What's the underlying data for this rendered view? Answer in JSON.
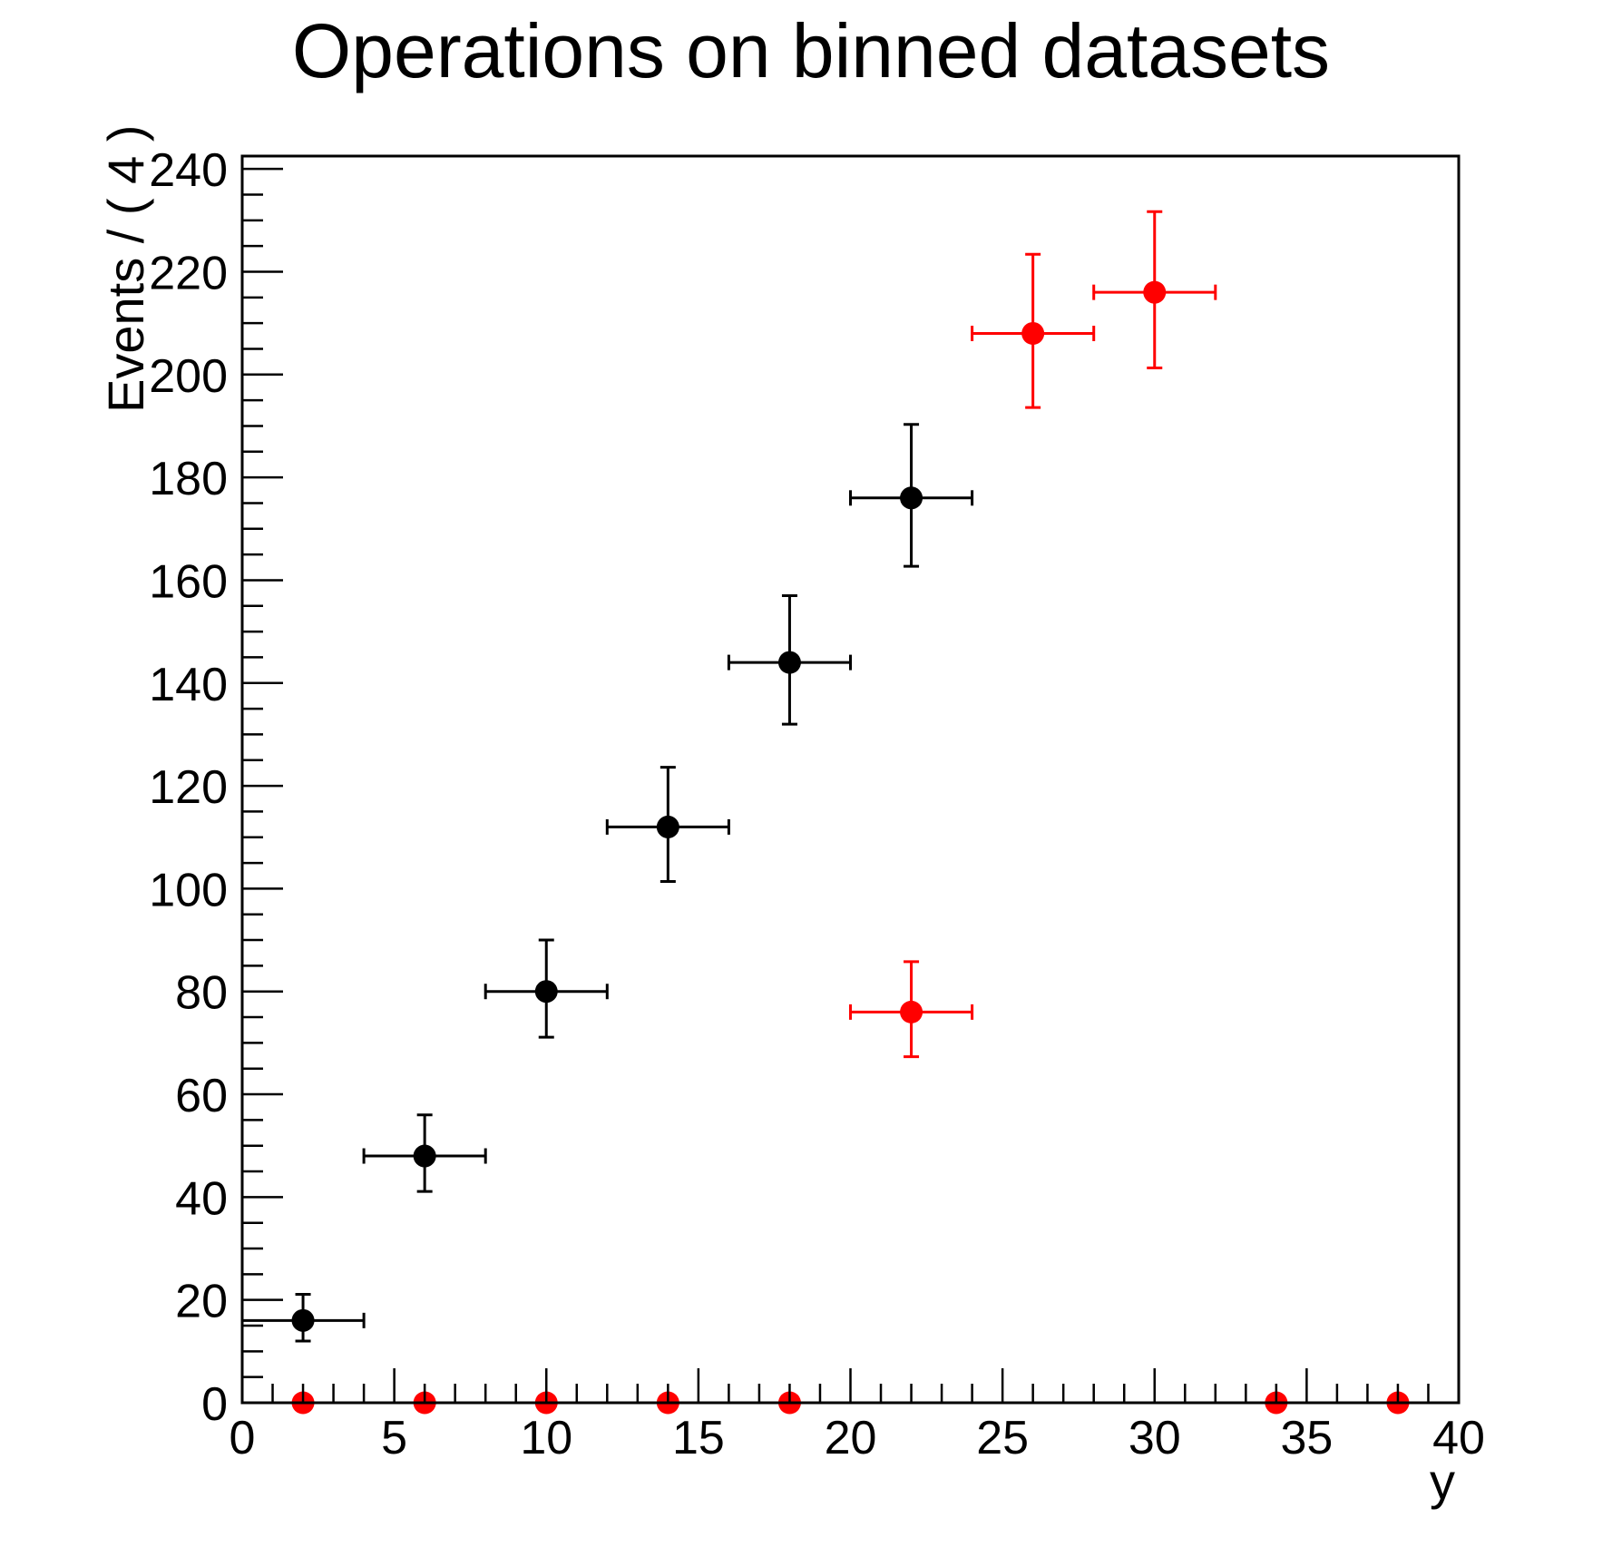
{
  "colors": {
    "background": "#ffffff",
    "axis": "#000000",
    "series_black": "#000000",
    "series_red": "#ff0000"
  },
  "chart_data": {
    "type": "scatter",
    "title": "Operations on binned datasets",
    "xlabel": "y",
    "ylabel": "Events / ( 4 )",
    "xlim": [
      0,
      40
    ],
    "ylim": [
      0,
      242.5
    ],
    "x_major_ticks": [
      0,
      5,
      10,
      15,
      20,
      25,
      30,
      35,
      40
    ],
    "x_minor_step": 1,
    "y_major_ticks": [
      0,
      20,
      40,
      60,
      80,
      100,
      120,
      140,
      160,
      180,
      200,
      220,
      240
    ],
    "y_minor_step": 5,
    "grid": false,
    "legend": null,
    "bin_width": 4,
    "marker": "filled-circle",
    "series": [
      {
        "name": "binned-dataset-black",
        "color": "#000000",
        "points": [
          {
            "x": 2,
            "xerr": 2,
            "y": 16,
            "ylow": 12.0,
            "yhigh": 21.1
          },
          {
            "x": 6,
            "xerr": 2,
            "y": 48,
            "ylow": 41.1,
            "yhigh": 56.0
          },
          {
            "x": 10,
            "xerr": 2,
            "y": 80,
            "ylow": 71.1,
            "yhigh": 90.0
          },
          {
            "x": 14,
            "xerr": 2,
            "y": 112,
            "ylow": 101.4,
            "yhigh": 123.6
          },
          {
            "x": 18,
            "xerr": 2,
            "y": 144,
            "ylow": 132.0,
            "yhigh": 157.0
          },
          {
            "x": 22,
            "xerr": 2,
            "y": 176,
            "ylow": 162.7,
            "yhigh": 190.3
          }
        ]
      },
      {
        "name": "binned-dataset-red",
        "color": "#ff0000",
        "points": [
          {
            "x": 2,
            "xerr": 2,
            "y": 0
          },
          {
            "x": 6,
            "xerr": 2,
            "y": 0
          },
          {
            "x": 10,
            "xerr": 2,
            "y": 0
          },
          {
            "x": 14,
            "xerr": 2,
            "y": 0
          },
          {
            "x": 18,
            "xerr": 2,
            "y": 0
          },
          {
            "x": 22,
            "xerr": 2,
            "y": 76,
            "ylow": 67.3,
            "yhigh": 85.8
          },
          {
            "x": 26,
            "xerr": 2,
            "y": 208,
            "ylow": 193.6,
            "yhigh": 223.4
          },
          {
            "x": 30,
            "xerr": 2,
            "y": 216,
            "ylow": 201.3,
            "yhigh": 231.7
          },
          {
            "x": 34,
            "xerr": 2,
            "y": 0
          },
          {
            "x": 38,
            "xerr": 2,
            "y": 0
          }
        ]
      }
    ]
  }
}
